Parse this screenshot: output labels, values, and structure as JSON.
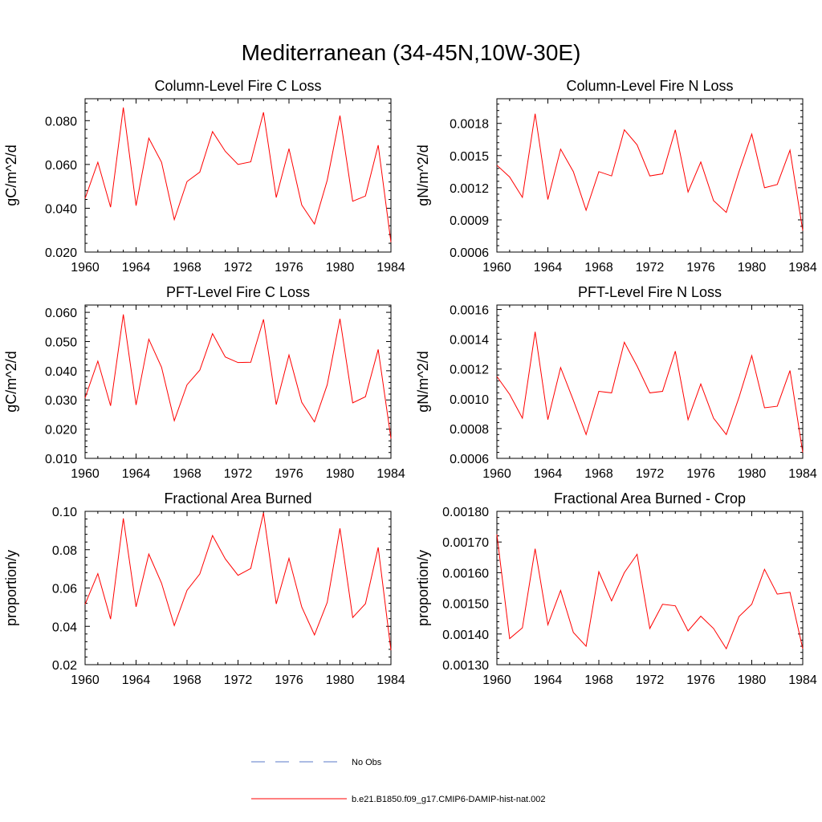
{
  "figure": {
    "title": "Mediterranean (34-45N,10W-30E)"
  },
  "legend": {
    "items": [
      {
        "label": "No Obs",
        "color": "#5a78c8",
        "dash": true
      },
      {
        "label": "b.e21.B1850.f09_g17.CMIP6-DAMIP-hist-nat.002",
        "color": "#ff0000",
        "dash": false
      }
    ]
  },
  "chart_data": [
    {
      "type": "line",
      "title": "Column-Level Fire C Loss",
      "ylabel": "gC/m^2/d",
      "xlim": [
        1960,
        1984
      ],
      "ylim": [
        0.02,
        0.09
      ],
      "xticks": [
        1960,
        1964,
        1968,
        1972,
        1976,
        1980,
        1984
      ],
      "yticks": [
        0.02,
        0.04,
        0.06,
        0.08
      ],
      "ytick_labels": [
        "0.020",
        "0.040",
        "0.060",
        "0.080"
      ],
      "series": [
        {
          "name": "b.e21.B1850.f09_g17.CMIP6-DAMIP-hist-nat.002",
          "color": "#ff0000",
          "x": [
            1960,
            1961,
            1962,
            1963,
            1964,
            1965,
            1966,
            1967,
            1968,
            1969,
            1970,
            1971,
            1972,
            1973,
            1974,
            1975,
            1976,
            1977,
            1978,
            1979,
            1980,
            1981,
            1982,
            1983,
            1984
          ],
          "y": [
            0.0445,
            0.061,
            0.0405,
            0.086,
            0.0412,
            0.072,
            0.061,
            0.0348,
            0.0522,
            0.0565,
            0.075,
            0.066,
            0.06,
            0.0612,
            0.0838,
            0.0449,
            0.0672,
            0.0415,
            0.0328,
            0.0528,
            0.0823,
            0.0432,
            0.0456,
            0.0688,
            0.0245
          ]
        }
      ]
    },
    {
      "type": "line",
      "title": "Column-Level Fire N Loss",
      "ylabel": "gN/m^2/d",
      "xlim": [
        1960,
        1984
      ],
      "ylim": [
        0.0006,
        0.00203
      ],
      "xticks": [
        1960,
        1964,
        1968,
        1972,
        1976,
        1980,
        1984
      ],
      "yticks": [
        0.0006,
        0.0009,
        0.0012,
        0.0015,
        0.0018
      ],
      "ytick_labels": [
        "0.0006",
        "0.0009",
        "0.0012",
        "0.0015",
        "0.0018"
      ],
      "series": [
        {
          "name": "b.e21.B1850.f09_g17.CMIP6-DAMIP-hist-nat.002",
          "color": "#ff0000",
          "x": [
            1960,
            1961,
            1962,
            1963,
            1964,
            1965,
            1966,
            1967,
            1968,
            1969,
            1970,
            1971,
            1972,
            1973,
            1974,
            1975,
            1976,
            1977,
            1978,
            1979,
            1980,
            1981,
            1982,
            1983,
            1984
          ],
          "y": [
            0.00141,
            0.0013,
            0.00111,
            0.00189,
            0.00109,
            0.00156,
            0.00135,
            0.00099,
            0.00135,
            0.00131,
            0.00174,
            0.0016,
            0.00131,
            0.00133,
            0.00174,
            0.00116,
            0.00144,
            0.00108,
            0.00097,
            0.00135,
            0.0017,
            0.0012,
            0.00123,
            0.00155,
            0.0008
          ]
        }
      ]
    },
    {
      "type": "line",
      "title": "PFT-Level Fire C Loss",
      "ylabel": "gC/m^2/d",
      "xlim": [
        1960,
        1984
      ],
      "ylim": [
        0.01,
        0.0625
      ],
      "xticks": [
        1960,
        1964,
        1968,
        1972,
        1976,
        1980,
        1984
      ],
      "yticks": [
        0.01,
        0.02,
        0.03,
        0.04,
        0.05,
        0.06
      ],
      "ytick_labels": [
        "0.010",
        "0.020",
        "0.030",
        "0.040",
        "0.050",
        "0.060"
      ],
      "series": [
        {
          "name": "b.e21.B1850.f09_g17.CMIP6-DAMIP-hist-nat.002",
          "color": "#ff0000",
          "x": [
            1960,
            1961,
            1962,
            1963,
            1964,
            1965,
            1966,
            1967,
            1968,
            1969,
            1970,
            1971,
            1972,
            1973,
            1974,
            1975,
            1976,
            1977,
            1978,
            1979,
            1980,
            1981,
            1982,
            1983,
            1984
          ],
          "y": [
            0.0307,
            0.0433,
            0.028,
            0.0593,
            0.0283,
            0.0508,
            0.0412,
            0.0229,
            0.0352,
            0.0402,
            0.0527,
            0.0447,
            0.0428,
            0.0429,
            0.0576,
            0.0284,
            0.0454,
            0.0292,
            0.0225,
            0.0352,
            0.0578,
            0.029,
            0.0311,
            0.0473,
            0.0168
          ]
        }
      ]
    },
    {
      "type": "line",
      "title": "PFT-Level Fire N Loss",
      "ylabel": "gN/m^2/d",
      "xlim": [
        1960,
        1984
      ],
      "ylim": [
        0.0006,
        0.00163
      ],
      "xticks": [
        1960,
        1964,
        1968,
        1972,
        1976,
        1980,
        1984
      ],
      "yticks": [
        0.0006,
        0.0008,
        0.001,
        0.0012,
        0.0014,
        0.0016
      ],
      "ytick_labels": [
        "0.0006",
        "0.0008",
        "0.0010",
        "0.0012",
        "0.0014",
        "0.0016"
      ],
      "series": [
        {
          "name": "b.e21.B1850.f09_g17.CMIP6-DAMIP-hist-nat.002",
          "color": "#ff0000",
          "x": [
            1960,
            1961,
            1962,
            1963,
            1964,
            1965,
            1966,
            1967,
            1968,
            1969,
            1970,
            1971,
            1972,
            1973,
            1974,
            1975,
            1976,
            1977,
            1978,
            1979,
            1980,
            1981,
            1982,
            1983,
            1984
          ],
          "y": [
            0.00115,
            0.00103,
            0.00087,
            0.00145,
            0.00086,
            0.00121,
            0.00099,
            0.00076,
            0.00105,
            0.00104,
            0.00138,
            0.00122,
            0.00104,
            0.00105,
            0.00132,
            0.00086,
            0.0011,
            0.00087,
            0.00076,
            0.00101,
            0.00129,
            0.00094,
            0.00095,
            0.00119,
            0.00064
          ]
        }
      ]
    },
    {
      "type": "line",
      "title": "Fractional Area Burned",
      "ylabel": "proportion/y",
      "xlim": [
        1960,
        1984
      ],
      "ylim": [
        0.02,
        0.1
      ],
      "xticks": [
        1960,
        1964,
        1968,
        1972,
        1976,
        1980,
        1984
      ],
      "yticks": [
        0.02,
        0.04,
        0.06,
        0.08,
        0.1
      ],
      "ytick_labels": [
        "0.02",
        "0.04",
        "0.06",
        "0.08",
        "0.10"
      ],
      "series": [
        {
          "name": "b.e21.B1850.f09_g17.CMIP6-DAMIP-hist-nat.002",
          "color": "#ff0000",
          "x": [
            1960,
            1961,
            1962,
            1963,
            1964,
            1965,
            1966,
            1967,
            1968,
            1969,
            1970,
            1971,
            1972,
            1973,
            1974,
            1975,
            1976,
            1977,
            1978,
            1979,
            1980,
            1981,
            1982,
            1983,
            1984
          ],
          "y": [
            0.0515,
            0.0675,
            0.0438,
            0.0963,
            0.0502,
            0.0777,
            0.0625,
            0.0404,
            0.0588,
            0.0673,
            0.0874,
            0.0752,
            0.0666,
            0.0702,
            0.0992,
            0.0517,
            0.0755,
            0.0501,
            0.0355,
            0.0525,
            0.0911,
            0.0446,
            0.0518,
            0.0812,
            0.0275
          ]
        }
      ]
    },
    {
      "type": "line",
      "title": "Fractional Area Burned - Crop",
      "ylabel": "proportion/y",
      "xlim": [
        1960,
        1984
      ],
      "ylim": [
        0.0013,
        0.0018
      ],
      "xticks": [
        1960,
        1964,
        1968,
        1972,
        1976,
        1980,
        1984
      ],
      "yticks": [
        0.0013,
        0.0014,
        0.0015,
        0.0016,
        0.0017,
        0.0018
      ],
      "ytick_labels": [
        "0.00130",
        "0.00140",
        "0.00150",
        "0.00160",
        "0.00170",
        "0.00180"
      ],
      "series": [
        {
          "name": "b.e21.B1850.f09_g17.CMIP6-DAMIP-hist-nat.002",
          "color": "#ff0000",
          "x": [
            1960,
            1961,
            1962,
            1963,
            1964,
            1965,
            1966,
            1967,
            1968,
            1969,
            1970,
            1971,
            1972,
            1973,
            1974,
            1975,
            1976,
            1977,
            1978,
            1979,
            1980,
            1981,
            1982,
            1983,
            1984
          ],
          "y": [
            0.001725,
            0.001385,
            0.00142,
            0.001678,
            0.00143,
            0.001542,
            0.001405,
            0.00136,
            0.001603,
            0.001508,
            0.0016,
            0.00166,
            0.001418,
            0.001497,
            0.001492,
            0.00141,
            0.001458,
            0.001418,
            0.001352,
            0.001457,
            0.001497,
            0.001611,
            0.00153,
            0.001536,
            0.001352
          ]
        }
      ]
    }
  ]
}
